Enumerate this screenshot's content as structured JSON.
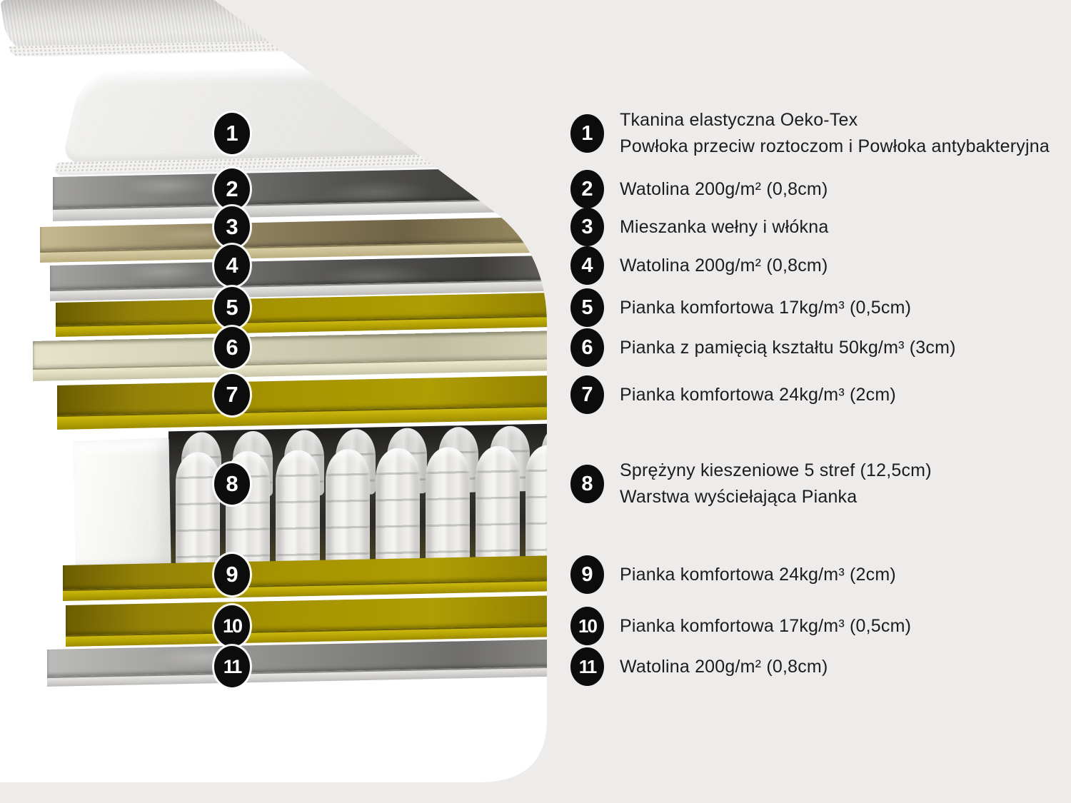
{
  "page": {
    "background_color": "#EEEBEB",
    "photo_background_color": "#FFFFFF"
  },
  "colors": {
    "badge_bg": "#0C0C0C",
    "badge_text": "#FFFFFF",
    "legend_text": "#1D1C1C",
    "foam_yellow": "#A59300",
    "foam_yellow_front": "#C4B10A",
    "memory_foam_cream": "#D5D2B8",
    "wool_tan": "#95885F",
    "batting_gray": "#5A5957",
    "batting_front_gray": "#D2D1CF",
    "cover_fabric": "#E9E8E6",
    "spring_white": "#F2F1EF",
    "spring_backdrop": "#2C2B29"
  },
  "diagram": {
    "layer_badges": [
      "1",
      "2",
      "3",
      "4",
      "5",
      "6",
      "7",
      "8",
      "9",
      "10",
      "11"
    ],
    "layer_materials": [
      "fabric-cover",
      "batting",
      "wool-fiber-mix",
      "batting",
      "comfort-foam",
      "memory-foam",
      "comfort-foam",
      "pocket-springs",
      "comfort-foam",
      "comfort-foam",
      "batting"
    ]
  },
  "legend": {
    "items": [
      {
        "number": "1",
        "lines": [
          "Tkanina elastyczna Oeko-Tex",
          "Powłoka przeciw roztoczom i Powłoka antybakteryjna"
        ]
      },
      {
        "number": "2",
        "lines": [
          "Watolina 200g/m² (0,8cm)"
        ]
      },
      {
        "number": "3",
        "lines": [
          "Mieszanka wełny i włókna"
        ]
      },
      {
        "number": "4",
        "lines": [
          "Watolina 200g/m² (0,8cm)"
        ]
      },
      {
        "number": "5",
        "lines": [
          "Pianka komfortowa 17kg/m³ (0,5cm)"
        ]
      },
      {
        "number": "6",
        "lines": [
          "Pianka z pamięcią kształtu 50kg/m³ (3cm)"
        ]
      },
      {
        "number": "7",
        "lines": [
          "Pianka komfortowa 24kg/m³ (2cm)"
        ]
      },
      {
        "number": "8",
        "lines": [
          "Sprężyny kieszeniowe 5 stref (12,5cm)",
          "Warstwa wyściełająca Pianka"
        ]
      },
      {
        "number": "9",
        "lines": [
          "Pianka komfortowa 24kg/m³ (2cm)"
        ]
      },
      {
        "number": "10",
        "lines": [
          "Pianka komfortowa 17kg/m³ (0,5cm)"
        ]
      },
      {
        "number": "11",
        "lines": [
          "Watolina 200g/m² (0,8cm)"
        ]
      }
    ]
  }
}
